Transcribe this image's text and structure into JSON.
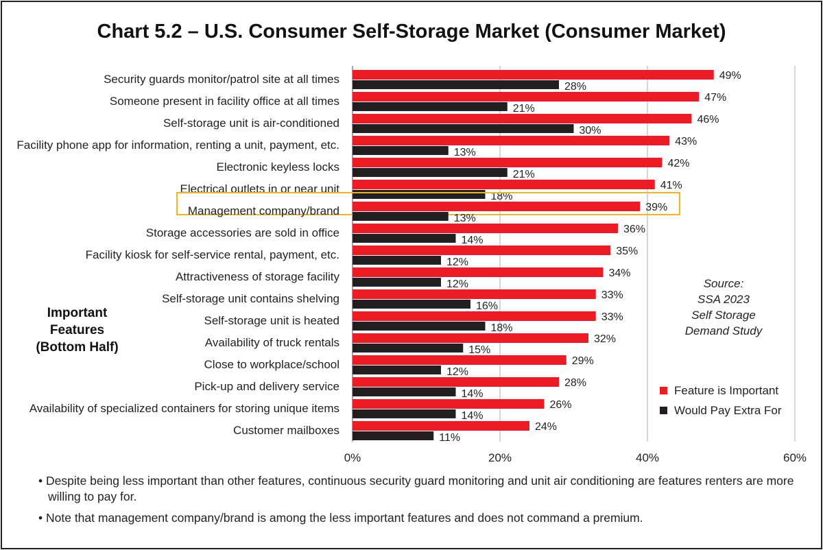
{
  "title": "Chart 5.2 – U.S. Consumer Self-Storage Market (Consumer Market)",
  "side_label": [
    "Important",
    "Features",
    "(Bottom Half)"
  ],
  "source": [
    "Source:",
    "SSA 2023",
    "Self Storage",
    "Demand Study"
  ],
  "notes": [
    "• Despite being less important than other features, continuous security guard monitoring and unit air conditioning are features renters are more willing to pay for.",
    "• Note that management company/brand is among the less important features and does not command a premium."
  ],
  "chart_data": {
    "type": "bar",
    "orientation": "horizontal",
    "categories": [
      "Security guards monitor/patrol site at all times",
      "Someone present in facility office at all times",
      "Self-storage unit is air-conditioned",
      "Facility phone app for information, renting a unit, payment, etc.",
      "Electronic keyless locks",
      "Electrical outlets in or near unit",
      "Management company/brand",
      "Storage accessories are sold in office",
      "Facility kiosk for self-service rental, payment, etc.",
      "Attractiveness of storage facility",
      "Self-storage unit contains shelving",
      "Self-storage unit is heated",
      "Availability of truck rentals",
      "Close to workplace/school",
      "Pick-up and delivery service",
      "Availability of specialized containers for storing unique items",
      "Customer mailboxes"
    ],
    "series": [
      {
        "name": "Feature is Important",
        "color": "#ed1c24",
        "values": [
          49,
          47,
          46,
          43,
          42,
          41,
          39,
          36,
          35,
          34,
          33,
          33,
          32,
          29,
          28,
          26,
          24
        ]
      },
      {
        "name": "Would Pay Extra For",
        "color": "#231f20",
        "values": [
          28,
          21,
          30,
          13,
          21,
          18,
          13,
          14,
          12,
          12,
          16,
          18,
          15,
          12,
          14,
          14,
          11
        ]
      }
    ],
    "xlim": [
      0,
      60
    ],
    "xticks": [
      "0%",
      "20%",
      "40%",
      "60%"
    ],
    "xtick_values": [
      0,
      20,
      40,
      60
    ],
    "grid": true,
    "legend_position": "right",
    "highlight_category": "Management company/brand",
    "highlight_color": "#f5b41e"
  }
}
